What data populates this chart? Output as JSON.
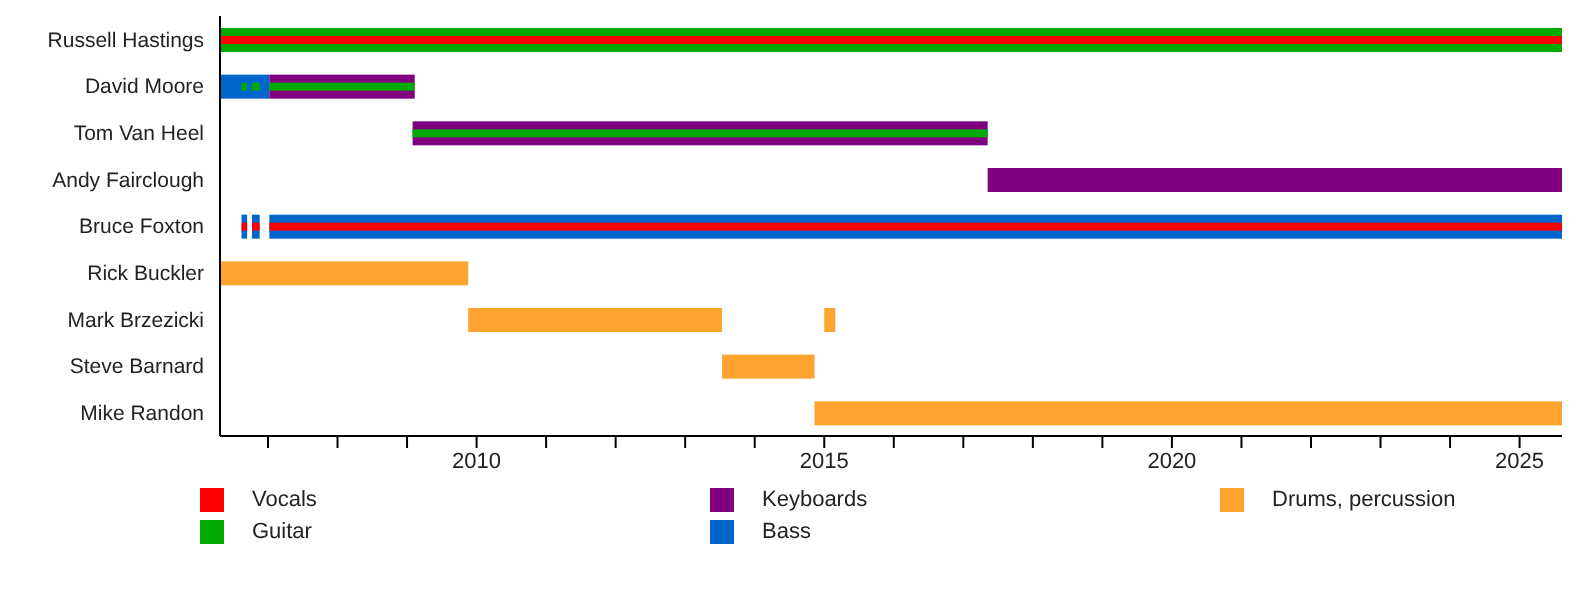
{
  "chart_data": {
    "type": "bar",
    "orientation": "horizontal",
    "legend": "bottom",
    "categories": [
      "Russell Hastings",
      "David Moore",
      "Tom Van Heel",
      "Andy Fairclough",
      "Bruce Foxton",
      "Rick Buckler",
      "Mark Brzezicki",
      "Steve Barnard",
      "Mike Randon"
    ],
    "xlim": [
      2006.31,
      2025.61
    ],
    "xticks": [
      {
        "value": 2007,
        "label": null
      },
      {
        "value": 2008,
        "label": null
      },
      {
        "value": 2009,
        "label": null
      },
      2010,
      {
        "value": 2011,
        "label": null
      },
      {
        "value": 2012,
        "label": null
      },
      {
        "value": 2013,
        "label": null
      },
      {
        "value": 2014,
        "label": null
      },
      2015,
      {
        "value": 2016,
        "label": null
      },
      {
        "value": 2017,
        "label": null
      },
      {
        "value": 2018,
        "label": null
      },
      {
        "value": 2019,
        "label": null
      },
      2020,
      {
        "value": 2021,
        "label": null
      },
      {
        "value": 2022,
        "label": null
      },
      {
        "value": 2023,
        "label": null
      },
      {
        "value": 2024,
        "label": null
      },
      2025
    ],
    "series": [
      {
        "name": "Vocals",
        "color": "#ff0000",
        "base": [
          2006.31,
          null,
          null,
          null,
          2007.02,
          null,
          null,
          null,
          null
        ],
        "values": [
          19.3,
          null,
          null,
          null,
          18.59,
          null,
          null,
          null,
          null
        ]
      },
      {
        "name": "Guitar",
        "color": "#00aa00",
        "base": [
          2006.31,
          2007.02,
          2009.08,
          null,
          null,
          null,
          null,
          null,
          null
        ],
        "values": [
          19.3,
          2.09,
          8.27,
          null,
          null,
          null,
          null,
          null,
          null
        ]
      },
      {
        "name": "Keyboards",
        "color": "#800080",
        "base": [
          null,
          2007.02,
          2009.08,
          2017.35,
          null,
          null,
          null,
          null,
          null
        ],
        "values": [
          null,
          2.09,
          8.27,
          8.26,
          null,
          null,
          null,
          null,
          null
        ]
      },
      {
        "name": "Bass",
        "color": "#0066cc",
        "base": [
          null,
          null,
          null,
          null,
          2007.02,
          null,
          null,
          null,
          null
        ],
        "values": [
          null,
          null,
          null,
          null,
          18.59,
          null,
          null,
          null,
          null
        ]
      },
      {
        "name": "Drums, percussion",
        "color": "#ffa330",
        "base": [
          null,
          null,
          null,
          null,
          null,
          2006.31,
          2009.88,
          2013.53,
          2014.86
        ],
        "values": [
          null,
          null,
          null,
          null,
          null,
          3.57,
          3.65,
          1.33,
          10.75
        ]
      },
      {
        "color": "#ff0000",
        "base": [
          null,
          null,
          null,
          null,
          2006.62,
          null,
          null,
          null,
          null
        ],
        "values": [
          null,
          null,
          null,
          null,
          0.08,
          null,
          null,
          null,
          null
        ]
      },
      {
        "color": "#ff0000",
        "base": [
          null,
          null,
          null,
          null,
          2006.77,
          null,
          null,
          null,
          null
        ],
        "values": [
          null,
          null,
          null,
          null,
          0.11,
          null,
          null,
          null,
          null
        ]
      },
      {
        "color": "#00aa00",
        "base": [
          null,
          2006.62,
          null,
          null,
          null,
          null,
          null,
          null,
          null
        ],
        "values": [
          null,
          0.08,
          null,
          null,
          null,
          null,
          null,
          null,
          null
        ]
      },
      {
        "color": "#00aa00",
        "base": [
          null,
          2006.77,
          null,
          null,
          null,
          null,
          null,
          null,
          null
        ],
        "values": [
          null,
          0.11,
          null,
          null,
          null,
          null,
          null,
          null,
          null
        ]
      },
      {
        "color": "#0066cc",
        "base": [
          null,
          2006.31,
          null,
          null,
          2006.62,
          null,
          null,
          null,
          null
        ],
        "values": [
          null,
          0.71,
          null,
          null,
          0.08,
          null,
          null,
          null,
          null
        ]
      },
      {
        "color": "#0066cc",
        "base": [
          null,
          null,
          null,
          null,
          2006.77,
          null,
          null,
          null,
          null
        ],
        "values": [
          null,
          null,
          null,
          null,
          0.11,
          null,
          null,
          null,
          null
        ]
      },
      {
        "color": "#ffa330",
        "base": [
          null,
          null,
          null,
          null,
          null,
          null,
          2015.0,
          null,
          null
        ],
        "values": [
          null,
          null,
          null,
          null,
          null,
          null,
          0.16,
          null,
          null
        ]
      }
    ]
  }
}
